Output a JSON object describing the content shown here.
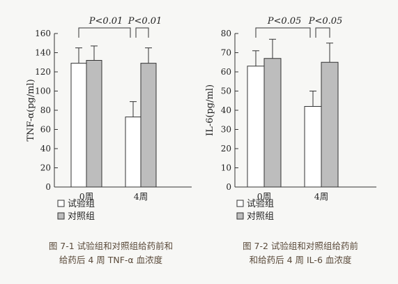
{
  "chart_data": [
    {
      "type": "bar",
      "ylabel": "TNF-α(pg/ml)",
      "ylim": [
        0,
        160
      ],
      "yticks": [
        0,
        20,
        40,
        60,
        80,
        100,
        120,
        140,
        160
      ],
      "categories": [
        "0周",
        "4周"
      ],
      "series": [
        {
          "name": "试验组",
          "color": "#ffffff",
          "values": [
            129,
            73
          ],
          "errors": [
            16,
            16
          ]
        },
        {
          "name": "对照组",
          "color": "#bdbdbd",
          "values": [
            132,
            129
          ],
          "errors": [
            15,
            16
          ]
        }
      ],
      "annotations": [
        "P<0.01",
        "P<0.01"
      ],
      "legend_position": "bottom-left",
      "caption_line1": "图 7-1  试验组和对照组给药前和",
      "caption_line2": "给药后 4 周 TNF-α 血浓度"
    },
    {
      "type": "bar",
      "ylabel": "IL-6(pg/ml)",
      "ylim": [
        0,
        80
      ],
      "yticks": [
        0,
        10,
        20,
        30,
        40,
        50,
        60,
        70,
        80
      ],
      "categories": [
        "0周",
        "4周"
      ],
      "series": [
        {
          "name": "试验组",
          "color": "#ffffff",
          "values": [
            63,
            42
          ],
          "errors": [
            8,
            8
          ]
        },
        {
          "name": "对照组",
          "color": "#bdbdbd",
          "values": [
            67,
            65
          ],
          "errors": [
            10,
            10
          ]
        }
      ],
      "annotations": [
        "P<0.05",
        "P<0.05"
      ],
      "legend_position": "bottom-left",
      "caption_line1": "图 7-2  试验组和对照组给药前",
      "caption_line2": "和给药后 4 周 IL-6 血浓度"
    }
  ]
}
